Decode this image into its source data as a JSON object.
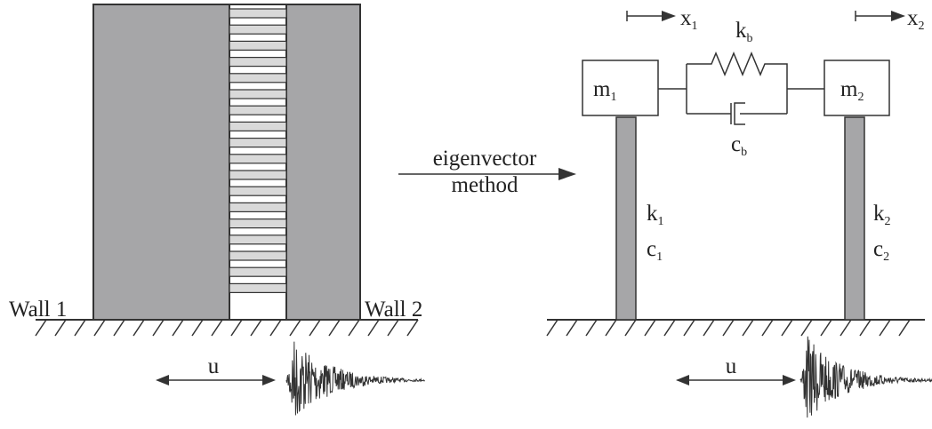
{
  "left": {
    "wall1": "Wall 1",
    "wall2": "Wall 2",
    "motion": "u"
  },
  "arrow": {
    "line1": "eigenvector",
    "line2": "method"
  },
  "right": {
    "mass1": {
      "base": "m",
      "sub": "1"
    },
    "mass2": {
      "base": "m",
      "sub": "2"
    },
    "disp1": {
      "base": "x",
      "sub": "1"
    },
    "disp2": {
      "base": "x",
      "sub": "2"
    },
    "spring_b": {
      "base": "k",
      "sub": "b"
    },
    "damper_b": {
      "base": "c",
      "sub": "b"
    },
    "spring1": {
      "base": "k",
      "sub": "1"
    },
    "damper1": {
      "base": "c",
      "sub": "1"
    },
    "spring2": {
      "base": "k",
      "sub": "2"
    },
    "damper2": {
      "base": "c",
      "sub": "2"
    },
    "motion": "u"
  }
}
